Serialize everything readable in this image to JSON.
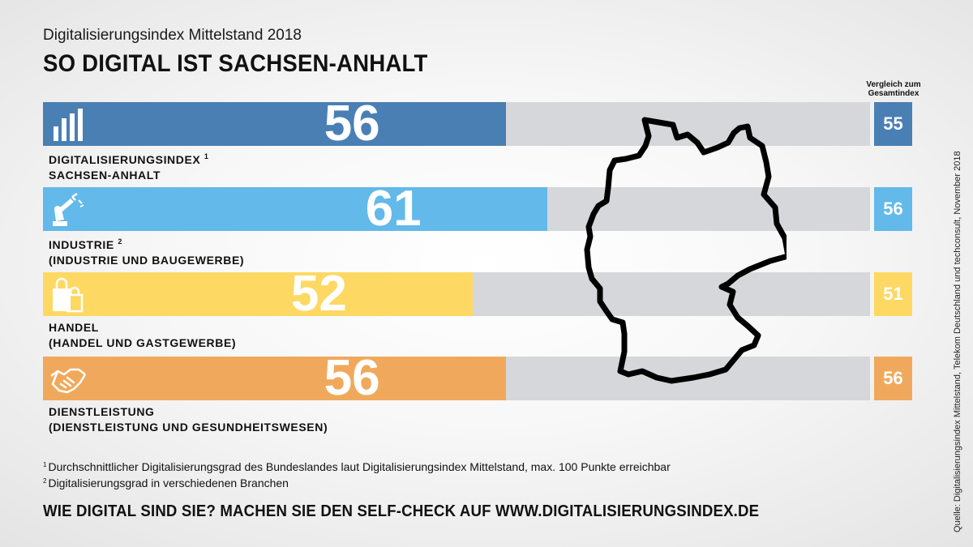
{
  "header": {
    "subtitle": "Digitalisierungsindex Mittelstand 2018",
    "title": "SO DIGITAL IST SACHSEN-ANHALT",
    "comparison_header_line1": "Vergleich zum",
    "comparison_header_line2": "Gesamtindex"
  },
  "chart_data": {
    "type": "bar",
    "orientation": "horizontal",
    "xlim": [
      0,
      100
    ],
    "categories": [
      "DIGITALISIERUNGSINDEX SACHSEN-ANHALT",
      "INDUSTRIE (INDUSTRIE UND BAUGEWERBE)",
      "HANDEL (HANDEL UND GASTGEWERBE)",
      "DIENSTLEISTUNG (DIENSTLEISTUNG UND GESUNDHEITSWESEN)"
    ],
    "series": [
      {
        "values": [
          56,
          61,
          52,
          56
        ]
      },
      {
        "name": "Vergleich zum Gesamtindex",
        "values": [
          55,
          56,
          51,
          56
        ]
      }
    ]
  },
  "rows": [
    {
      "label_line1": "DIGITALISIERUNGSINDEX",
      "sup": "1",
      "label_line2": "SACHSEN-ANHALT",
      "value": "56",
      "compare": "55",
      "fill_color": "#4a7fb4",
      "compare_color": "#4a7fb4",
      "icon": "bar-chart-icon"
    },
    {
      "label_line1": "INDUSTRIE",
      "sup": "2",
      "label_line2": "(INDUSTRIE UND BAUGEWERBE)",
      "value": "61",
      "compare": "56",
      "fill_color": "#62b9ea",
      "compare_color": "#62b9ea",
      "icon": "robot-arm-icon"
    },
    {
      "label_line1": "HANDEL",
      "sup": "",
      "label_line2": "(HANDEL UND GASTGEWERBE)",
      "value": "52",
      "compare": "51",
      "fill_color": "#fdd963",
      "compare_color": "#fdd963",
      "icon": "shopping-bags-icon"
    },
    {
      "label_line1": "DIENSTLEISTUNG",
      "sup": "",
      "label_line2": "(DIENSTLEISTUNG UND GESUNDHEITSWESEN)",
      "value": "56",
      "compare": "56",
      "fill_color": "#f0a95c",
      "compare_color": "#f0a95c",
      "icon": "handshake-icon"
    }
  ],
  "footnotes": [
    {
      "num": "1",
      "text": "Durchschnittlicher Digitalisierungsgrad des Bundeslandes laut Digitalisierungsindex Mittelstand, max. 100 Punkte erreichbar"
    },
    {
      "num": "2",
      "text": "Digitalisierungsgrad in verschiedenen Branchen"
    }
  ],
  "cta": "WIE DIGITAL SIND SIE? MACHEN SIE DEN SELF-CHECK AUF WWW.DIGITALISIERUNGSINDEX.DE",
  "source": "Quelle: Digitalisierungsindex Mittelstand, Telekom Deutschland und techconsult, November 2018"
}
